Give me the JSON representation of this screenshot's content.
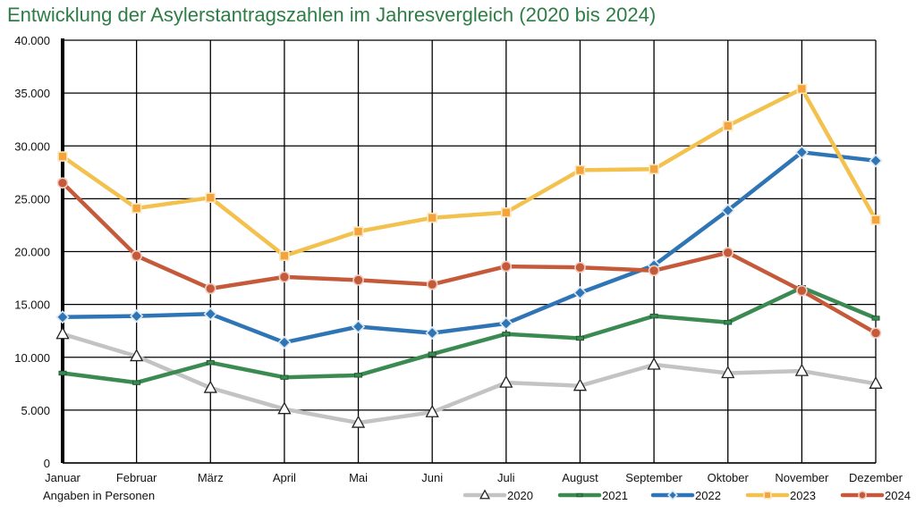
{
  "chart_data": {
    "type": "line",
    "title": "Entwicklung der Asylerstantragszahlen im Jahresvergleich (2020 bis 2024)",
    "note": "Angaben in Personen",
    "categories": [
      "Januar",
      "Februar",
      "März",
      "April",
      "Mai",
      "Juni",
      "Juli",
      "August",
      "September",
      "Oktober",
      "November",
      "Dezember"
    ],
    "ylim": [
      0,
      40000
    ],
    "y_ticks": [
      0,
      5000,
      10000,
      15000,
      20000,
      25000,
      30000,
      35000,
      40000
    ],
    "y_tick_labels": [
      "0",
      "5.000",
      "10.000",
      "15.000",
      "20.000",
      "25.000",
      "30.000",
      "35.000",
      "40.000"
    ],
    "grid": true,
    "legend_position": "bottom-right",
    "title_color": "#2e7d45",
    "series": [
      {
        "name": "2020",
        "color": "#c3c3c3",
        "marker": "triangle",
        "values": [
          12200,
          10100,
          7100,
          5100,
          3800,
          4800,
          7600,
          7300,
          9300,
          8500,
          8700,
          7500
        ]
      },
      {
        "name": "2021",
        "color": "#3a8a52",
        "marker": "dash",
        "values": [
          8500,
          7600,
          9500,
          8100,
          8300,
          10300,
          12200,
          11800,
          13900,
          13300,
          16600,
          13700
        ]
      },
      {
        "name": "2022",
        "color": "#2f75b5",
        "marker": "diamond",
        "values": [
          13800,
          13900,
          14100,
          11400,
          12900,
          12300,
          13200,
          16100,
          18700,
          23900,
          29400,
          28600
        ]
      },
      {
        "name": "2023",
        "color": "#f2c14e",
        "marker": "square",
        "values": [
          29000,
          24100,
          25100,
          19600,
          21900,
          23200,
          23700,
          27700,
          27800,
          31900,
          35400,
          23000
        ]
      },
      {
        "name": "2024",
        "color": "#c55a3a",
        "marker": "circle",
        "values": [
          26500,
          19600,
          16500,
          17600,
          17300,
          16900,
          18600,
          18500,
          18200,
          19900,
          16300,
          12300
        ]
      }
    ]
  }
}
